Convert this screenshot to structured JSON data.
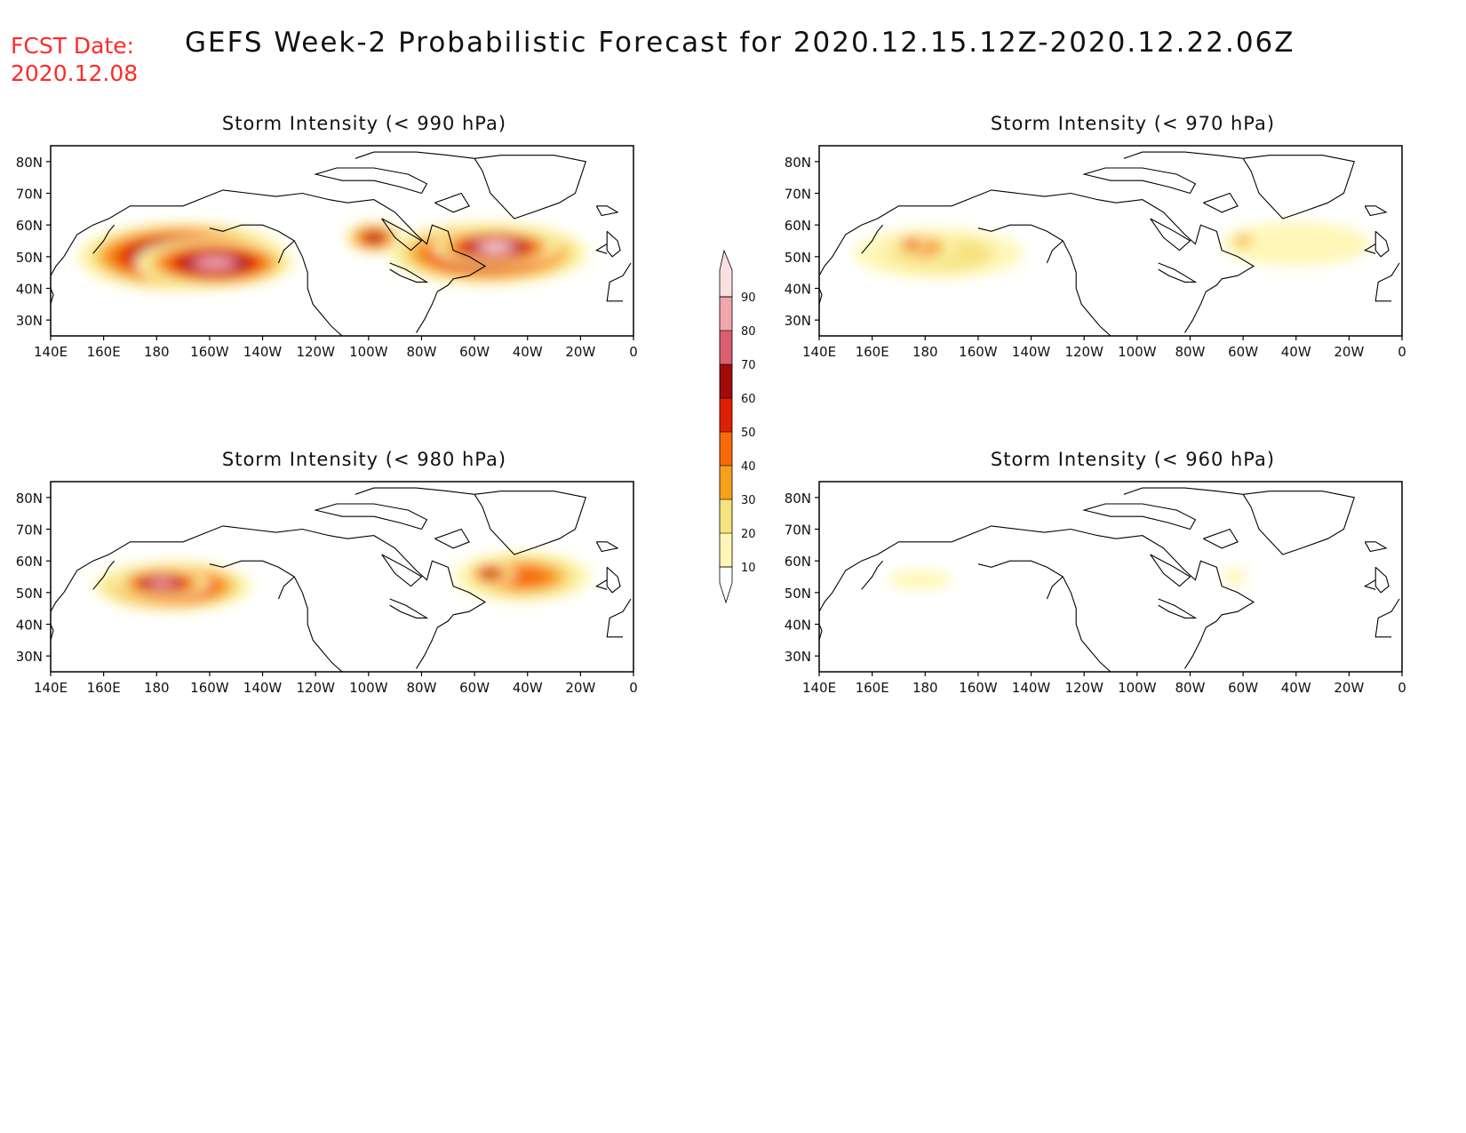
{
  "header": {
    "fcst_label": "FCST Date:",
    "fcst_date": "2020.12.08",
    "title": "GEFS Week-2 Probabilistic Forecast for 2020.12.15.12Z-2020.12.22.06Z"
  },
  "colors": {
    "fcst_text": "#ff2a2a",
    "scale": [
      "#fff7b8",
      "#f6e27f",
      "#f7a11a",
      "#f76a07",
      "#e02005",
      "#a30a0a",
      "#d95f6e",
      "#f2a6ae",
      "#fbe0e2"
    ]
  },
  "colorbar": {
    "levels": [
      "10",
      "20",
      "30",
      "40",
      "50",
      "60",
      "70",
      "80",
      "90"
    ]
  },
  "chart_data": [
    {
      "type": "heatmap",
      "title": "Storm Intensity (< 990 hPa)",
      "x_ticks": [
        "140E",
        "160E",
        "180",
        "160W",
        "140W",
        "120W",
        "100W",
        "80W",
        "60W",
        "40W",
        "20W",
        "0"
      ],
      "y_ticks": [
        "80N",
        "70N",
        "60N",
        "50N",
        "40N",
        "30N"
      ],
      "xlim": [
        140,
        360
      ],
      "ylim": [
        25,
        85
      ],
      "blobs": [
        {
          "lon": 190,
          "lat": 50,
          "rlon": 40,
          "rlat": 11,
          "level": 9
        },
        {
          "lon": 202,
          "lat": 48,
          "rlon": 30,
          "rlat": 8,
          "level": 8
        },
        {
          "lon": 262,
          "lat": 56,
          "rlon": 11,
          "rlat": 5,
          "level": 6
        },
        {
          "lon": 305,
          "lat": 51,
          "rlon": 38,
          "rlat": 10,
          "level": 8
        },
        {
          "lon": 308,
          "lat": 53,
          "rlon": 24,
          "rlat": 6,
          "level": 9
        }
      ]
    },
    {
      "type": "heatmap",
      "title": "Storm Intensity (< 970 hPa)",
      "x_ticks": [
        "140E",
        "160E",
        "180",
        "160W",
        "140W",
        "120W",
        "100W",
        "80W",
        "60W",
        "40W",
        "20W",
        "0"
      ],
      "y_ticks": [
        "80N",
        "70N",
        "60N",
        "50N",
        "40N",
        "30N"
      ],
      "xlim": [
        140,
        360
      ],
      "ylim": [
        25,
        85
      ],
      "blobs": [
        {
          "lon": 185,
          "lat": 51,
          "rlon": 32,
          "rlat": 8,
          "level": 2
        },
        {
          "lon": 178,
          "lat": 53,
          "rlon": 14,
          "rlat": 5,
          "level": 4
        },
        {
          "lon": 175,
          "lat": 54,
          "rlon": 6,
          "rlat": 3,
          "level": 5
        },
        {
          "lon": 320,
          "lat": 54,
          "rlon": 28,
          "rlat": 7,
          "level": 1
        },
        {
          "lon": 300,
          "lat": 55,
          "rlon": 5,
          "rlat": 3,
          "level": 3
        }
      ]
    },
    {
      "type": "heatmap",
      "title": "Storm Intensity (< 980 hPa)",
      "x_ticks": [
        "140E",
        "160E",
        "180",
        "160W",
        "140W",
        "120W",
        "100W",
        "80W",
        "60W",
        "40W",
        "20W",
        "0"
      ],
      "y_ticks": [
        "80N",
        "70N",
        "60N",
        "50N",
        "40N",
        "30N"
      ],
      "xlim": [
        140,
        360
      ],
      "ylim": [
        25,
        85
      ],
      "blobs": [
        {
          "lon": 186,
          "lat": 52,
          "rlon": 30,
          "rlat": 8,
          "level": 7
        },
        {
          "lon": 182,
          "lat": 53,
          "rlon": 18,
          "rlat": 5,
          "level": 8
        },
        {
          "lon": 318,
          "lat": 55,
          "rlon": 26,
          "rlat": 8,
          "level": 4
        },
        {
          "lon": 306,
          "lat": 56,
          "rlon": 9,
          "rlat": 4,
          "level": 6
        }
      ]
    },
    {
      "type": "heatmap",
      "title": "Storm Intensity (< 960 hPa)",
      "x_ticks": [
        "140E",
        "160E",
        "180",
        "160W",
        "140W",
        "120W",
        "100W",
        "80W",
        "60W",
        "40W",
        "20W",
        "0"
      ],
      "y_ticks": [
        "80N",
        "70N",
        "60N",
        "50N",
        "40N",
        "30N"
      ],
      "xlim": [
        140,
        360
      ],
      "ylim": [
        25,
        85
      ],
      "blobs": [
        {
          "lon": 178,
          "lat": 54,
          "rlon": 12,
          "rlat": 3,
          "level": 1
        },
        {
          "lon": 297,
          "lat": 55,
          "rlon": 4,
          "rlat": 3,
          "level": 1
        }
      ]
    }
  ]
}
